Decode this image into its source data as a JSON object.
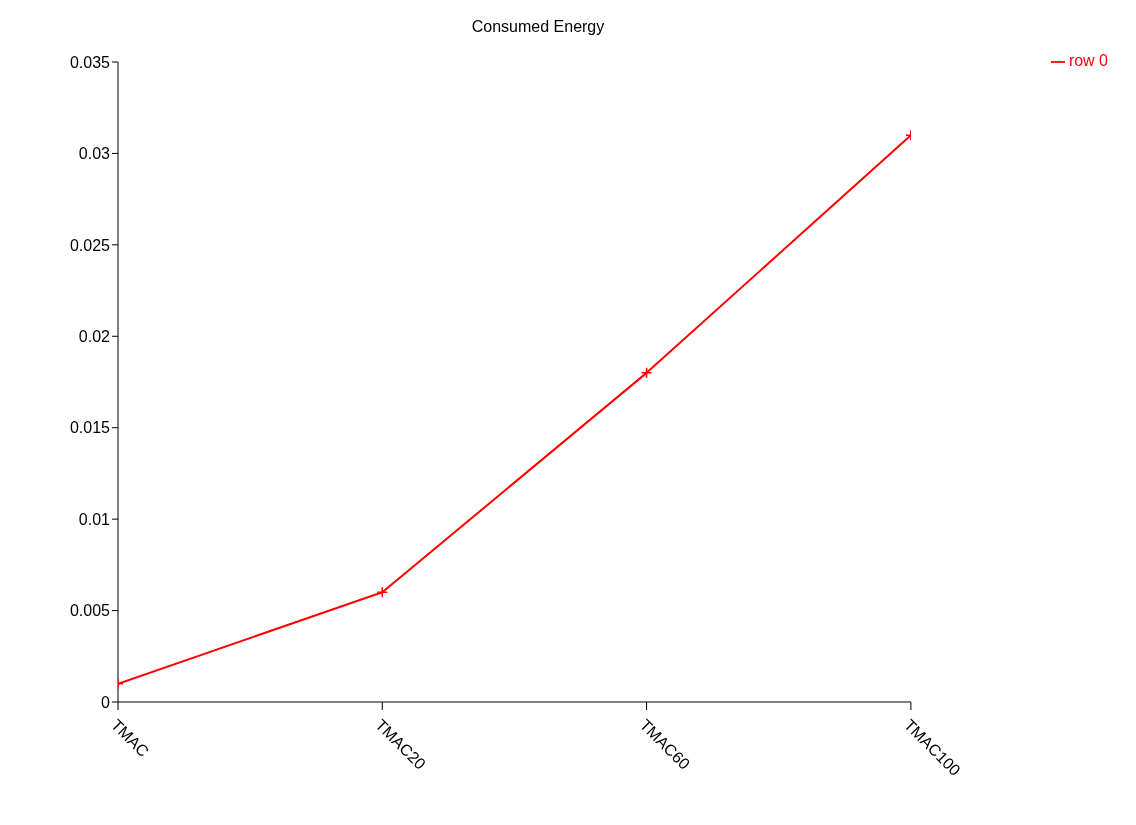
{
  "chart_data": {
    "type": "line",
    "title": "Consumed Energy",
    "categories": [
      "TMAC",
      "TMAC20",
      "TMAC60",
      "TMAC100"
    ],
    "series": [
      {
        "name": "row 0",
        "color": "#ff0000",
        "values": [
          0.001,
          0.006,
          0.018,
          0.031
        ]
      }
    ],
    "ylim": [
      0,
      0.035
    ],
    "yticks": [
      0,
      0.005,
      0.01,
      0.015,
      0.02,
      0.025,
      0.03,
      0.035
    ],
    "grid": false,
    "legend": "top right",
    "marker": "cross",
    "line_style": "solid"
  }
}
